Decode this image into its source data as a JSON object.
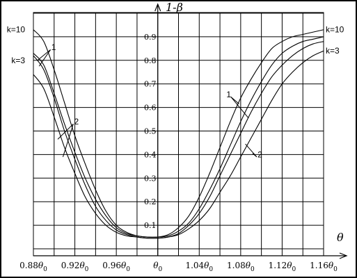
{
  "chart_data": {
    "type": "line",
    "title": "",
    "xlabel": "θ",
    "ylabel": "1-β",
    "xlim": [
      0.88,
      1.16
    ],
    "ylim": [
      0,
      1.0
    ],
    "grid": true,
    "x_tick_labels": [
      {
        "x": 0.88,
        "text": "0.88θ0"
      },
      {
        "x": 0.92,
        "text": "0.92θ0"
      },
      {
        "x": 0.96,
        "text": "0.96θ0"
      },
      {
        "x": 1.0,
        "text": "θ0"
      },
      {
        "x": 1.04,
        "text": "1.04θ0"
      },
      {
        "x": 1.08,
        "text": "1.08θ0"
      },
      {
        "x": 1.12,
        "text": "1.12θ0"
      },
      {
        "x": 1.16,
        "text": "1.16θ0"
      }
    ],
    "y_tick_labels": [
      {
        "y": 0.1,
        "text": "0.1"
      },
      {
        "y": 0.2,
        "text": "0.2"
      },
      {
        "y": 0.3,
        "text": "0.3"
      },
      {
        "y": 0.4,
        "text": "0.4"
      },
      {
        "y": 0.5,
        "text": "0.5"
      },
      {
        "y": 0.6,
        "text": "0.6"
      },
      {
        "y": 0.7,
        "text": "0.7"
      },
      {
        "y": 0.8,
        "text": "0.8"
      },
      {
        "y": 0.9,
        "text": "0.9"
      }
    ],
    "series": [
      {
        "x": [
          0.88,
          0.89,
          0.9,
          0.91,
          0.92,
          0.93,
          0.94,
          0.95,
          0.96,
          0.97,
          0.98,
          0.99,
          1.0,
          1.01,
          1.02,
          1.03,
          1.04,
          1.05,
          1.06,
          1.07,
          1.08,
          1.09,
          1.1,
          1.11,
          1.12,
          1.13,
          1.14,
          1.15,
          1.16
        ],
        "values": [
          0.93,
          0.88,
          0.76,
          0.62,
          0.48,
          0.36,
          0.25,
          0.16,
          0.1,
          0.07,
          0.055,
          0.05,
          0.05,
          0.06,
          0.09,
          0.14,
          0.22,
          0.32,
          0.43,
          0.54,
          0.64,
          0.72,
          0.79,
          0.85,
          0.88,
          0.9,
          0.91,
          0.92,
          0.93
        ]
      },
      {
        "x": [
          0.88,
          0.89,
          0.9,
          0.91,
          0.92,
          0.93,
          0.94,
          0.95,
          0.96,
          0.97,
          0.98,
          0.99,
          1.0,
          1.01,
          1.02,
          1.03,
          1.04,
          1.05,
          1.06,
          1.07,
          1.08,
          1.09,
          1.1,
          1.11,
          1.12,
          1.13,
          1.14,
          1.15,
          1.16
        ],
        "values": [
          0.83,
          0.78,
          0.66,
          0.53,
          0.41,
          0.3,
          0.21,
          0.14,
          0.09,
          0.065,
          0.055,
          0.05,
          0.05,
          0.055,
          0.075,
          0.11,
          0.17,
          0.25,
          0.34,
          0.44,
          0.54,
          0.63,
          0.71,
          0.78,
          0.83,
          0.86,
          0.88,
          0.89,
          0.9
        ]
      },
      {
        "x": [
          0.88,
          0.89,
          0.9,
          0.91,
          0.92,
          0.93,
          0.94,
          0.95,
          0.96,
          0.97,
          0.98,
          0.99,
          1.0,
          1.01,
          1.02,
          1.03,
          1.04,
          1.05,
          1.06,
          1.07,
          1.08,
          1.09,
          1.1,
          1.11,
          1.12,
          1.13,
          1.14,
          1.15,
          1.16
        ],
        "values": [
          0.82,
          0.76,
          0.64,
          0.5,
          0.38,
          0.27,
          0.18,
          0.12,
          0.08,
          0.06,
          0.05,
          0.045,
          0.045,
          0.05,
          0.065,
          0.1,
          0.15,
          0.22,
          0.31,
          0.4,
          0.49,
          0.58,
          0.66,
          0.73,
          0.78,
          0.82,
          0.85,
          0.87,
          0.88
        ]
      },
      {
        "x": [
          0.88,
          0.89,
          0.9,
          0.91,
          0.92,
          0.93,
          0.94,
          0.95,
          0.96,
          0.97,
          0.98,
          0.99,
          1.0,
          1.01,
          1.02,
          1.03,
          1.04,
          1.05,
          1.06,
          1.07,
          1.08,
          1.09,
          1.1,
          1.11,
          1.12,
          1.13,
          1.14,
          1.15,
          1.16
        ],
        "values": [
          0.74,
          0.68,
          0.56,
          0.43,
          0.32,
          0.22,
          0.15,
          0.1,
          0.07,
          0.055,
          0.05,
          0.045,
          0.045,
          0.05,
          0.06,
          0.085,
          0.12,
          0.17,
          0.24,
          0.31,
          0.39,
          0.47,
          0.55,
          0.63,
          0.7,
          0.75,
          0.79,
          0.82,
          0.84
        ]
      }
    ],
    "annotations": [
      {
        "text": "k=10",
        "x": 0.872,
        "y": 0.93,
        "anchor": "end"
      },
      {
        "text": "k=3",
        "x": 0.872,
        "y": 0.8,
        "anchor": "end"
      },
      {
        "text": "k=10",
        "x": 1.162,
        "y": 0.93,
        "anchor": "start"
      },
      {
        "text": "k=3",
        "x": 1.162,
        "y": 0.84,
        "anchor": "start"
      },
      {
        "text": "1",
        "x": 0.8995,
        "y": 0.855,
        "anchor": "middle"
      },
      {
        "text": "2",
        "x": 0.9215,
        "y": 0.54,
        "anchor": "middle"
      },
      {
        "text": "1",
        "x": 1.0685,
        "y": 0.655,
        "anchor": "middle"
      },
      {
        "text": "2",
        "x": 1.0985,
        "y": 0.4,
        "anchor": "middle"
      }
    ],
    "leader_lines": [
      {
        "from": [
          0.8965,
          0.845
        ],
        "to": [
          0.884,
          0.8
        ]
      },
      {
        "from": [
          0.8965,
          0.845
        ],
        "to": [
          0.8855,
          0.775
        ]
      },
      {
        "from": [
          0.9185,
          0.53
        ],
        "to": [
          0.9035,
          0.465
        ]
      },
      {
        "from": [
          0.9185,
          0.53
        ],
        "to": [
          0.9085,
          0.39
        ]
      },
      {
        "from": [
          1.0705,
          0.645
        ],
        "to": [
          1.0785,
          0.615
        ]
      },
      {
        "from": [
          1.0705,
          0.645
        ],
        "to": [
          1.0875,
          0.555
        ]
      },
      {
        "from": [
          1.0955,
          0.39
        ],
        "to": [
          1.0845,
          0.445
        ]
      },
      {
        "from": [
          1.0955,
          0.39
        ],
        "to": [
          1.0915,
          0.405
        ]
      }
    ]
  }
}
